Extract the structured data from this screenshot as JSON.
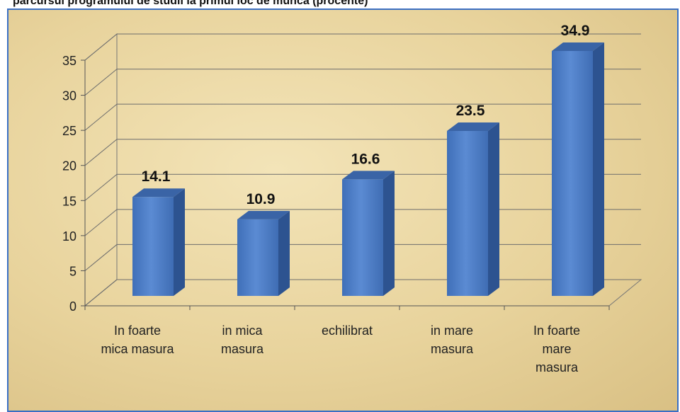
{
  "chart_data": {
    "type": "bar3d",
    "title": "parcursul programului de studii la primul loc de munca (procente)",
    "categories": [
      "In foarte mica masura",
      "in mica masura",
      "echilibrat",
      "in mare masura",
      "In foarte mare masura"
    ],
    "values": [
      14.1,
      10.9,
      16.6,
      23.5,
      34.9
    ],
    "color": "#4a7cc4",
    "ylim": [
      0,
      35
    ],
    "yticks": [
      0,
      5,
      10,
      15,
      20,
      25,
      30,
      35
    ],
    "grid": true
  }
}
